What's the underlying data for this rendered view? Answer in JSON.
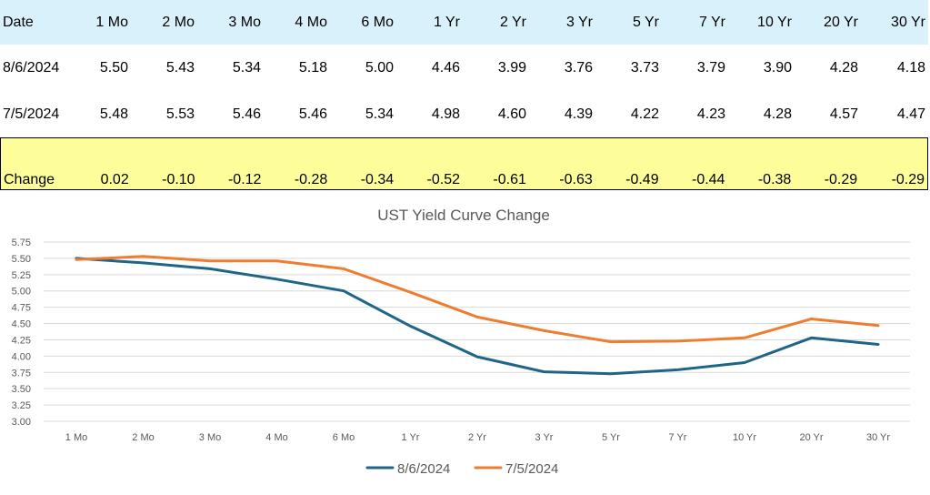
{
  "table": {
    "header": [
      "Date",
      "1 Mo",
      "2 Mo",
      "3 Mo",
      "4 Mo",
      "6 Mo",
      "1 Yr",
      "2 Yr",
      "3 Yr",
      "5 Yr",
      "7 Yr",
      "10 Yr",
      "20 Yr",
      "30 Yr"
    ],
    "rows": [
      [
        "8/6/2024",
        "5.50",
        "5.43",
        "5.34",
        "5.18",
        "5.00",
        "4.46",
        "3.99",
        "3.76",
        "3.73",
        "3.79",
        "3.90",
        "4.28",
        "4.18"
      ],
      [
        "7/5/2024",
        "5.48",
        "5.53",
        "5.46",
        "5.46",
        "5.34",
        "4.98",
        "4.60",
        "4.39",
        "4.22",
        "4.23",
        "4.28",
        "4.57",
        "4.47"
      ]
    ],
    "change": [
      "Change",
      "0.02",
      "-0.10",
      "-0.12",
      "-0.28",
      "-0.34",
      "-0.52",
      "-0.61",
      "-0.63",
      "-0.49",
      "-0.44",
      "-0.38",
      "-0.29",
      "-0.29"
    ]
  },
  "colors": {
    "header_bg": "#d9f1fb",
    "change_bg": "#fdfd9a",
    "series1": "#1f6587",
    "series2": "#ee7d31"
  },
  "chart_data": {
    "type": "line",
    "title": "UST Yield Curve Change",
    "categories": [
      "1 Mo",
      "2 Mo",
      "3 Mo",
      "4 Mo",
      "6 Mo",
      "1 Yr",
      "2 Yr",
      "3 Yr",
      "5 Yr",
      "7 Yr",
      "10 Yr",
      "20 Yr",
      "30 Yr"
    ],
    "series": [
      {
        "name": "8/6/2024",
        "values": [
          5.5,
          5.43,
          5.34,
          5.18,
          5.0,
          4.46,
          3.99,
          3.76,
          3.73,
          3.79,
          3.9,
          4.28,
          4.18
        ]
      },
      {
        "name": "7/5/2024",
        "values": [
          5.48,
          5.53,
          5.46,
          5.46,
          5.34,
          4.98,
          4.6,
          4.39,
          4.22,
          4.23,
          4.28,
          4.57,
          4.47
        ]
      }
    ],
    "yticks": [
      "3.00",
      "3.25",
      "3.50",
      "3.75",
      "4.00",
      "4.25",
      "4.50",
      "4.75",
      "5.00",
      "5.25",
      "5.50",
      "5.75"
    ],
    "ylim": [
      3.0,
      5.75
    ],
    "grid": true,
    "legend": "bottom"
  }
}
